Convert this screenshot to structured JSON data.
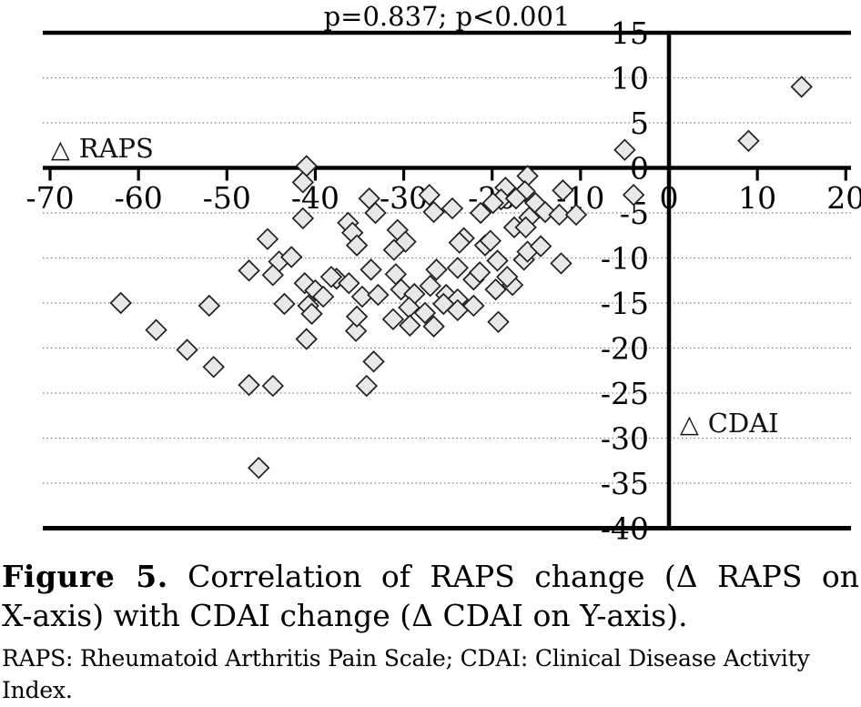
{
  "chart_data": {
    "type": "scatter",
    "title": "p=0.837; p<0.001",
    "x_axis": {
      "symbol": "△",
      "name": "RAPS",
      "min": -70,
      "max": 20,
      "ticks": [
        -70,
        -60,
        -50,
        -40,
        -30,
        -20,
        -10,
        0,
        10,
        20
      ]
    },
    "y_axis": {
      "symbol": "△",
      "name": "CDAI",
      "min": -40,
      "max": 15,
      "ticks": [
        15,
        10,
        5,
        0,
        -5,
        -10,
        -15,
        -20,
        -25,
        -30,
        -35,
        -40
      ],
      "gridlines": [
        10,
        5,
        -5,
        -10,
        -15,
        -20,
        -25,
        -30,
        -35
      ]
    },
    "grid": "horizontal-dotted",
    "legend_position": "inside-plot",
    "marker": {
      "shape": "diamond",
      "fill": "#e8e8e8",
      "stroke": "#1f1f1f"
    },
    "points": [
      [
        15,
        9
      ],
      [
        9,
        3
      ],
      [
        -5,
        2
      ],
      [
        -4,
        -3
      ],
      [
        -41,
        0.2
      ],
      [
        -41.4,
        -1.6
      ],
      [
        -41.4,
        -5.6
      ],
      [
        -16,
        -0.9
      ],
      [
        -18.5,
        -2.2
      ],
      [
        -16.3,
        -2.6
      ],
      [
        -12,
        -2.5
      ],
      [
        -19,
        -3.5
      ],
      [
        -17.3,
        -3.4
      ],
      [
        -15.1,
        -3.9
      ],
      [
        -14,
        -4.9
      ],
      [
        -12.4,
        -5.2
      ],
      [
        -10.5,
        -5.2
      ],
      [
        -15.8,
        -5.5
      ],
      [
        -17.5,
        -6.6
      ],
      [
        -16.2,
        -6.6
      ],
      [
        -27.1,
        -3
      ],
      [
        -26.6,
        -4.9
      ],
      [
        -24.5,
        -4.5
      ],
      [
        -21.3,
        -5
      ],
      [
        -19.9,
        -3.9
      ],
      [
        -23.2,
        -7.8
      ],
      [
        -23.7,
        -8.3
      ],
      [
        -20.8,
        -8.6
      ],
      [
        -33.9,
        -3.4
      ],
      [
        -33.2,
        -5
      ],
      [
        -36.3,
        -6.1
      ],
      [
        -45.4,
        -7.9
      ],
      [
        -35.8,
        -7.2
      ],
      [
        -35.3,
        -8.6
      ],
      [
        -30.7,
        -6.9
      ],
      [
        -29.8,
        -8.2
      ],
      [
        -31.1,
        -9.1
      ],
      [
        -20.2,
        -8.1
      ],
      [
        -19.4,
        -10.3
      ],
      [
        -16.4,
        -10.2
      ],
      [
        -16,
        -9.3
      ],
      [
        -14.5,
        -8.7
      ],
      [
        -12.2,
        -10.6
      ],
      [
        -17.7,
        -13
      ],
      [
        -19.6,
        -13.5
      ],
      [
        -18.3,
        -12.1
      ],
      [
        -19.3,
        -17.1
      ],
      [
        -44.1,
        -10.4
      ],
      [
        -42.7,
        -9.9
      ],
      [
        -47.5,
        -11.4
      ],
      [
        -44.8,
        -11.9
      ],
      [
        -41.2,
        -12.8
      ],
      [
        -40,
        -13.6
      ],
      [
        -39.1,
        -14.3
      ],
      [
        -37.6,
        -12.3
      ],
      [
        -36.2,
        -12.8
      ],
      [
        -38.2,
        -12.1
      ],
      [
        -34.7,
        -14.3
      ],
      [
        -43.5,
        -15.1
      ],
      [
        -40.8,
        -15.3
      ],
      [
        -40.4,
        -16.2
      ],
      [
        -33.7,
        -11.3
      ],
      [
        -30.9,
        -11.8
      ],
      [
        -32.9,
        -14.1
      ],
      [
        -30.3,
        -13.5
      ],
      [
        -28.8,
        -14
      ],
      [
        -26.3,
        -11.3
      ],
      [
        -23.9,
        -11.1
      ],
      [
        -27,
        -13.1
      ],
      [
        -25.2,
        -14.1
      ],
      [
        -23.9,
        -14.6
      ],
      [
        -22.1,
        -12.4
      ],
      [
        -21.4,
        -11.6
      ],
      [
        -22.1,
        -15.3
      ],
      [
        -25.5,
        -15.1
      ],
      [
        -23.9,
        -15.8
      ],
      [
        -27.6,
        -16.1
      ],
      [
        -31.2,
        -16.8
      ],
      [
        -29.4,
        -15.5
      ],
      [
        -29.3,
        -17.5
      ],
      [
        -26.6,
        -17.6
      ],
      [
        -62,
        -15
      ],
      [
        -52,
        -15.3
      ],
      [
        -58,
        -18
      ],
      [
        -54.5,
        -20.2
      ],
      [
        -51.5,
        -22.1
      ],
      [
        -47.5,
        -24.1
      ],
      [
        -44.8,
        -24.2
      ],
      [
        -41,
        -19
      ],
      [
        -35.4,
        -18.1
      ],
      [
        -35.3,
        -16.5
      ],
      [
        -33.4,
        -21.5
      ],
      [
        -34.2,
        -24.2
      ],
      [
        -46.4,
        -33.3
      ]
    ],
    "colors": {
      "axis": "#000000",
      "grid": "#808080",
      "marker_fill": "#e8e8e8",
      "marker_stroke": "#1f1f1f"
    }
  },
  "caption": {
    "label": "Figure 5.",
    "line1_rest": "Correlation of RAPS change (Δ RAPS on",
    "line2": "X-axis) with CDAI change (Δ CDAI on Y-axis)."
  },
  "footnote": {
    "line1": "RAPS: Rheumatoid Arthritis Pain Scale; CDAI: Clinical Disease Activity",
    "line2": "Index."
  }
}
